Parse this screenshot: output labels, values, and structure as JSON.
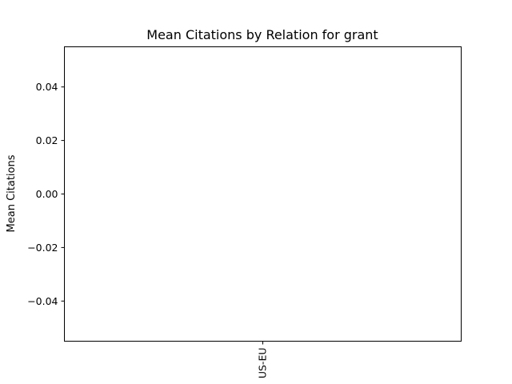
{
  "chart_data": {
    "type": "bar",
    "title": "Mean Citations by Relation for grant",
    "xlabel": "",
    "ylabel": "Mean Citations",
    "categories": [
      "US-EU"
    ],
    "values": [
      0
    ],
    "ylim": [
      -0.055,
      0.055
    ],
    "yticks": [
      0.04,
      0.02,
      0.0,
      -0.02,
      -0.04
    ],
    "ytick_labels": [
      "0.04",
      "0.02",
      "0.00",
      "−0.02",
      "−0.04"
    ],
    "grid": false,
    "legend": "none",
    "colors": {
      "bar": "#1f77b4",
      "axes": "#000000",
      "background": "#ffffff"
    }
  }
}
